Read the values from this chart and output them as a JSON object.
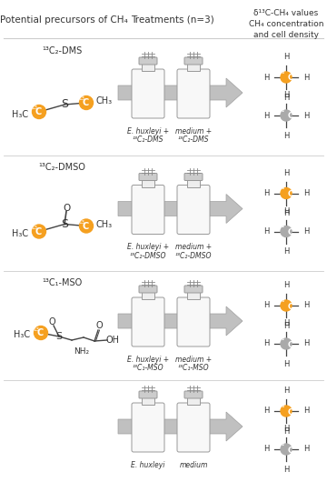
{
  "bg_color": "#ffffff",
  "header_col1": "Potential precursors of CH₄",
  "header_col2": "Treatments (n=3)",
  "header_col3": "δ¹³C-CH₄ values\nCH₄ concentration\nand cell density",
  "rows": [
    {
      "label": "¹³C₂-DMS",
      "bottle1_label": "E. huxleyi +",
      "bottle1_label2": "¹³C₂-DMS",
      "bottle2_label": "medium +",
      "bottle2_label2": "¹³C₂-DMS",
      "bottle1_color": "#2ec87a",
      "bottle2_color": "#4fc8e8",
      "has_structure": "DMS"
    },
    {
      "label": "¹³C₂-DMSO",
      "bottle1_label": "E. huxleyi +",
      "bottle1_label2": "¹³C₂-DMSO",
      "bottle2_label": "medium +",
      "bottle2_label2": "¹³C₂-DMSO",
      "bottle1_color": "#2ec87a",
      "bottle2_color": "#4fc8e8",
      "has_structure": "DMSO"
    },
    {
      "label": "¹³C₁-MSO",
      "bottle1_label": "E. huxleyi +",
      "bottle1_label2": "¹³C₁-MSO",
      "bottle2_label": "medium +",
      "bottle2_label2": "¹³C₁-MSO",
      "bottle1_color": "#2ec87a",
      "bottle2_color": "#4fc8e8",
      "has_structure": "MSO"
    },
    {
      "label": "",
      "bottle1_label": "E. huxleyi",
      "bottle1_label2": "",
      "bottle2_label": "medium",
      "bottle2_label2": "",
      "bottle1_color": "#2ec87a",
      "bottle2_color": "#4fc8e8",
      "has_structure": "none"
    }
  ],
  "orange_color": "#f5a020",
  "gray_color": "#aaaaaa",
  "text_color": "#333333"
}
